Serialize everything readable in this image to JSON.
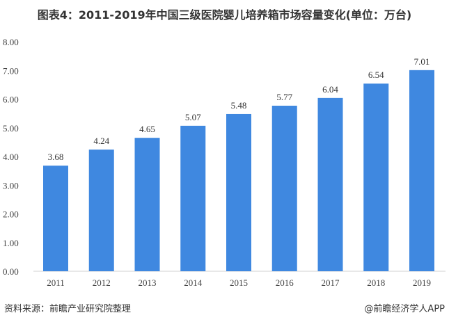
{
  "chart_data": {
    "type": "bar",
    "title": "图表4：2011-2019年中国三级医院婴儿培养箱市场容量变化(单位：万台)",
    "categories": [
      "2011",
      "2012",
      "2013",
      "2014",
      "2015",
      "2016",
      "2017",
      "2018",
      "2019"
    ],
    "values": [
      3.68,
      4.24,
      4.65,
      5.07,
      5.48,
      5.77,
      6.04,
      6.54,
      7.01
    ],
    "value_labels": [
      "3.68",
      "4.24",
      "4.65",
      "5.07",
      "5.48",
      "5.77",
      "6.04",
      "6.54",
      "7.01"
    ],
    "ylim": [
      0,
      8
    ],
    "yticks": [
      "0.00",
      "1.00",
      "2.00",
      "3.00",
      "4.00",
      "5.00",
      "6.00",
      "7.00",
      "8.00"
    ],
    "xlabel": "",
    "ylabel": "",
    "bar_color": "#3F88E0",
    "grid": false
  },
  "footer": {
    "source": "资料来源：前瞻产业研究院整理",
    "credit": "@前瞻经济学人APP"
  },
  "watermark": "前瞻产业研究院"
}
